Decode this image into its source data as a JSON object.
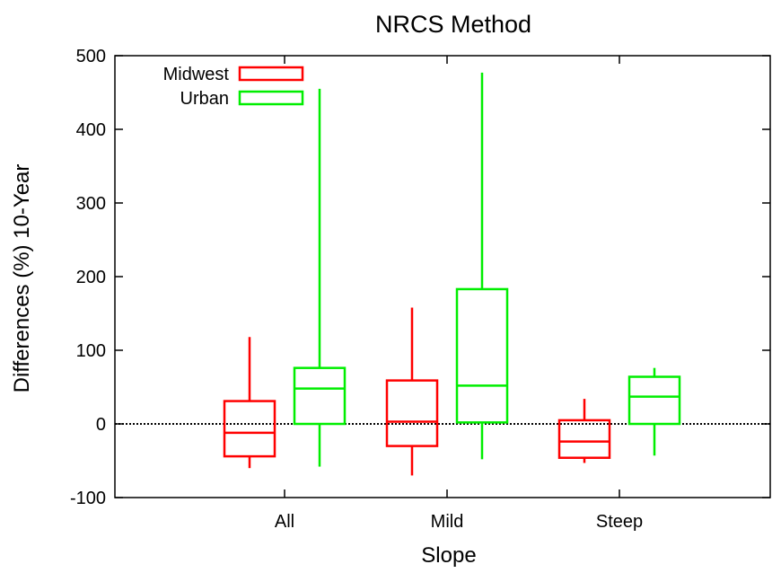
{
  "chart_data": {
    "type": "boxplot",
    "title": "NRCS Method",
    "xlabel": "Slope",
    "ylabel": "Differences (%) 10-Year",
    "ylim": [
      -100,
      500
    ],
    "yticks": [
      -100,
      0,
      100,
      200,
      300,
      400,
      500
    ],
    "categories": [
      "All",
      "Mild",
      "Steep"
    ],
    "reference_line": {
      "y": 0,
      "style": "dotted"
    },
    "grid": false,
    "legend": {
      "position": "top-left"
    },
    "series": [
      {
        "name": "Midwest",
        "color": "#ff0000",
        "boxes": [
          {
            "min": -60,
            "q1": -44,
            "median": -12,
            "q3": 31,
            "max": 118
          },
          {
            "min": -70,
            "q1": -30,
            "median": 3,
            "q3": 59,
            "max": 158
          },
          {
            "min": -53,
            "q1": -46,
            "median": -24,
            "q3": 5,
            "max": 34
          }
        ]
      },
      {
        "name": "Urban",
        "color": "#00ee00",
        "boxes": [
          {
            "min": -58,
            "q1": 0,
            "median": 48,
            "q3": 76,
            "max": 455
          },
          {
            "min": -48,
            "q1": 2,
            "median": 52,
            "q3": 183,
            "max": 477
          },
          {
            "min": -43,
            "q1": 0,
            "median": 37,
            "q3": 64,
            "max": 76
          }
        ]
      }
    ]
  }
}
